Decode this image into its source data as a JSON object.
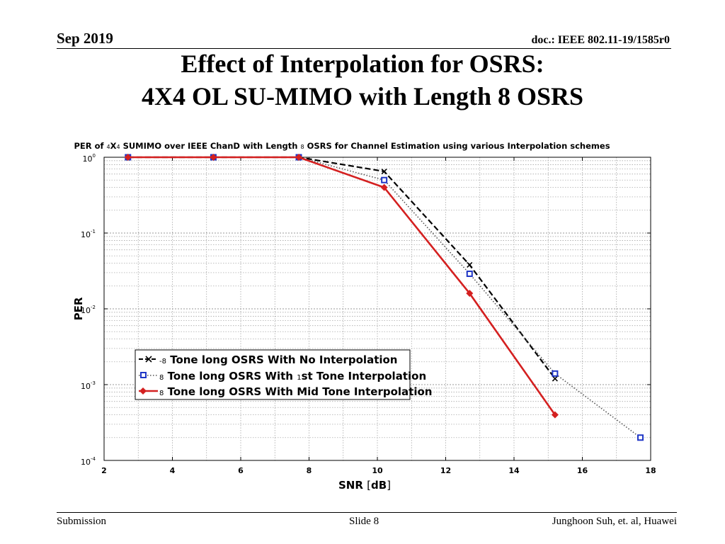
{
  "header": {
    "date": "Sep 2019",
    "doc": "doc.: IEEE 802.11-19/1585r0"
  },
  "title": {
    "line1": "Effect of Interpolation for OSRS:",
    "line2": "4X4 OL SU-MIMO with Length 8 OSRS"
  },
  "footer": {
    "left": "Submission",
    "center": "Slide 8",
    "right": "Junghoon Suh, et. al, Huawei"
  },
  "chart_data": {
    "type": "line",
    "title_parts": [
      "PER of ",
      "4",
      "X",
      "4",
      " SUMIMO over IEEE ChanD with Length ",
      "8",
      " OSRS for Channel Estimation using various Interpolation schemes"
    ],
    "xlabel_parts": [
      "SNR ",
      "[",
      "dB",
      "]"
    ],
    "ylabel": "PER",
    "xlim": [
      2,
      18
    ],
    "ylim_log10": [
      -4,
      0
    ],
    "x_ticks": [
      2,
      4,
      6,
      8,
      10,
      12,
      14,
      16,
      18
    ],
    "x_tick_labels": [
      "2",
      "4",
      "6",
      "8",
      "10",
      "12",
      "14",
      "16",
      "18"
    ],
    "y_tick_labels": [
      {
        "base": "10",
        "exp": "0"
      },
      {
        "base": "10",
        "exp": "-1"
      },
      {
        "base": "10",
        "exp": "-2"
      },
      {
        "base": "10",
        "exp": "-3"
      },
      {
        "base": "10",
        "exp": "-4"
      }
    ],
    "grid": true,
    "legend_position": "lower-left",
    "series": [
      {
        "name": "No Interpolation",
        "legend_parts": [
          "-8",
          " Tone long OSRS With No Interpolation"
        ],
        "color": "#000000",
        "marker": "x",
        "dash": "8,4",
        "width": 2.2,
        "x": [
          2.7,
          5.2,
          7.7,
          10.2,
          12.7,
          15.2
        ],
        "y": [
          1,
          1,
          1,
          0.65,
          0.038,
          0.0012
        ]
      },
      {
        "name": "1st Tone Interpolation",
        "legend_parts": [
          "8",
          " Tone long OSRS With ",
          "1",
          "st Tone Interpolation"
        ],
        "color": "#1f36c6",
        "line_color": "#555555",
        "marker": "square",
        "dash": "1.5,2.5",
        "width": 1.6,
        "x": [
          2.7,
          5.2,
          7.7,
          10.2,
          12.7,
          15.2,
          17.7
        ],
        "y": [
          1,
          1,
          1,
          0.5,
          0.029,
          0.0014,
          0.0002
        ]
      },
      {
        "name": "Mid Tone Interpolation",
        "legend_parts": [
          "8",
          " Tone long OSRS With Mid Tone Interpolation"
        ],
        "color": "#d42020",
        "marker": "diamond",
        "dash": "",
        "width": 2.6,
        "x": [
          2.7,
          5.2,
          7.7,
          10.2,
          12.7,
          15.2
        ],
        "y": [
          1,
          1,
          1,
          0.4,
          0.016,
          0.0004
        ]
      }
    ]
  }
}
